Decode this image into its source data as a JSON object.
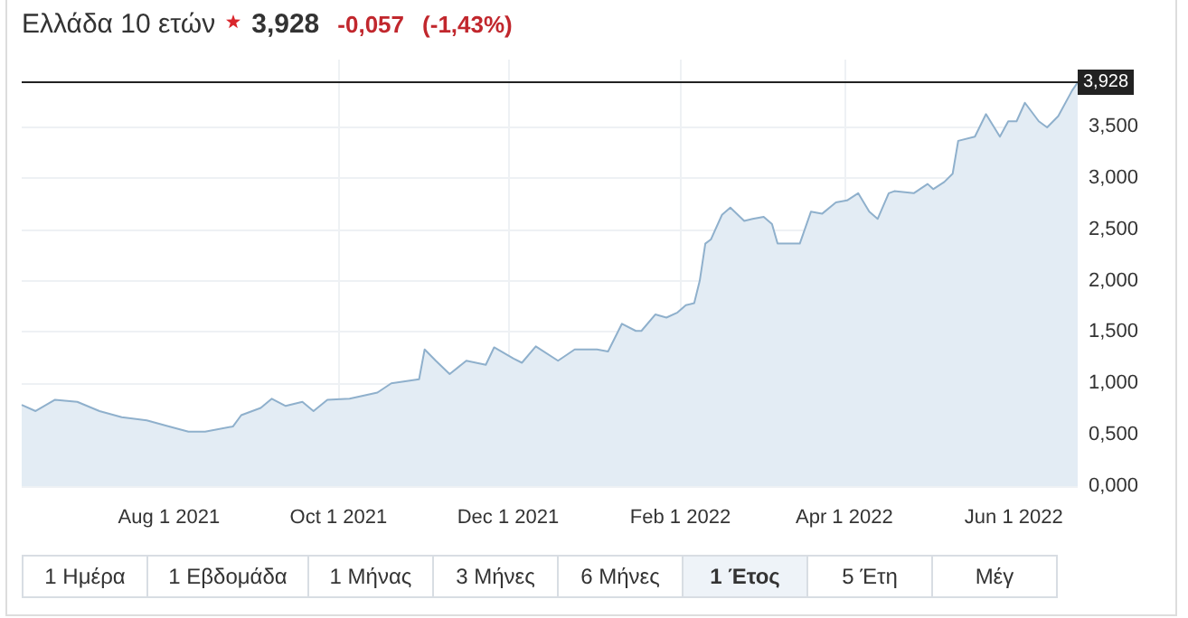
{
  "chart_data": {
    "type": "area",
    "title": "Ελλάδα 10 ετών",
    "annotations": [
      "3,928",
      "-0,057",
      "(-1,43%)",
      "1 Ημέρα",
      "1 Εβδομάδα",
      "1 Μήνας",
      "3 Μήνες",
      "6 Μήνες",
      "1 Έτος",
      "5 Έτη",
      "Μέγ"
    ],
    "x": [
      "2021-06-09",
      "2021-06-14",
      "2021-06-21",
      "2021-06-29",
      "2021-07-07",
      "2021-07-15",
      "2021-07-24",
      "2021-08-01",
      "2021-08-08",
      "2021-08-14",
      "2021-08-24",
      "2021-08-27",
      "2021-09-03",
      "2021-09-07",
      "2021-09-12",
      "2021-09-18",
      "2021-09-22",
      "2021-09-27",
      "2021-10-05",
      "2021-10-15",
      "2021-10-20",
      "2021-10-30",
      "2021-11-01",
      "2021-11-05",
      "2021-11-10",
      "2021-11-16",
      "2021-11-23",
      "2021-11-26",
      "2021-12-03",
      "2021-12-06",
      "2021-12-11",
      "2021-12-19",
      "2021-12-25",
      "2022-01-02",
      "2022-01-06",
      "2022-01-11",
      "2022-01-16",
      "2022-01-18",
      "2022-01-23",
      "2022-01-27",
      "2022-01-31",
      "2022-02-03",
      "2022-02-06",
      "2022-02-08",
      "2022-02-10",
      "2022-02-12",
      "2022-02-16",
      "2022-02-19",
      "2022-02-24",
      "2022-02-27",
      "2022-03-03",
      "2022-03-06",
      "2022-03-08",
      "2022-03-13",
      "2022-03-16",
      "2022-03-20",
      "2022-03-24",
      "2022-03-29",
      "2022-04-02",
      "2022-04-06",
      "2022-04-10",
      "2022-04-13",
      "2022-04-17",
      "2022-04-19",
      "2022-04-26",
      "2022-05-01",
      "2022-05-03",
      "2022-05-07",
      "2022-05-10",
      "2022-05-12",
      "2022-05-18",
      "2022-05-22",
      "2022-05-27",
      "2022-05-30",
      "2022-06-02",
      "2022-06-05",
      "2022-06-10",
      "2022-06-13",
      "2022-06-17",
      "2022-06-22",
      "2022-06-24"
    ],
    "series": [
      {
        "color": "#8fb0cc",
        "values": [
          0.79,
          0.73,
          0.84,
          0.82,
          0.73,
          0.67,
          0.64,
          0.58,
          0.53,
          0.53,
          0.58,
          0.69,
          0.76,
          0.85,
          0.78,
          0.82,
          0.73,
          0.84,
          0.85,
          0.91,
          1.0,
          1.04,
          1.33,
          1.22,
          1.09,
          1.22,
          1.18,
          1.35,
          1.24,
          1.2,
          1.36,
          1.22,
          1.33,
          1.33,
          1.31,
          1.58,
          1.51,
          1.51,
          1.67,
          1.64,
          1.69,
          1.76,
          1.78,
          2.0,
          2.36,
          2.4,
          2.64,
          2.71,
          2.58,
          2.6,
          2.62,
          2.55,
          2.36,
          2.36,
          2.36,
          2.67,
          2.65,
          2.76,
          2.78,
          2.85,
          2.67,
          2.6,
          2.85,
          2.87,
          2.85,
          2.94,
          2.89,
          2.96,
          3.04,
          3.36,
          3.4,
          3.62,
          3.4,
          3.55,
          3.55,
          3.73,
          3.55,
          3.49,
          3.6,
          3.85,
          3.928
        ]
      }
    ],
    "xlim": [
      "2021-06-09",
      "2022-06-24"
    ],
    "xticks": [
      {
        "value": "2021-08-01",
        "label": "Aug 1 2021"
      },
      {
        "value": "2021-10-01",
        "label": "Oct 1 2021"
      },
      {
        "value": "2021-12-01",
        "label": "Dec 1 2021"
      },
      {
        "value": "2022-02-01",
        "label": "Feb 1 2022"
      },
      {
        "value": "2022-04-01",
        "label": "Apr 1 2022"
      },
      {
        "value": "2022-06-01",
        "label": "Jun 1 2022"
      }
    ],
    "ylim": [
      0,
      4.15
    ],
    "yticks": [
      {
        "value": 0,
        "label": "0,000"
      },
      {
        "value": 0.5,
        "label": "0,500"
      },
      {
        "value": 1,
        "label": "1,000"
      },
      {
        "value": 1.5,
        "label": "1,500"
      },
      {
        "value": 2,
        "label": "2,000"
      },
      {
        "value": 2.5,
        "label": "2,500"
      },
      {
        "value": 3,
        "label": "3,000"
      },
      {
        "value": 3.5,
        "label": "3,500"
      }
    ],
    "ref_lines": [
      {
        "axis": "y",
        "value": 3.928,
        "label": "3,928",
        "color": "#222222"
      }
    ],
    "grid": true,
    "marker": "none",
    "line_style": "solid"
  }
}
